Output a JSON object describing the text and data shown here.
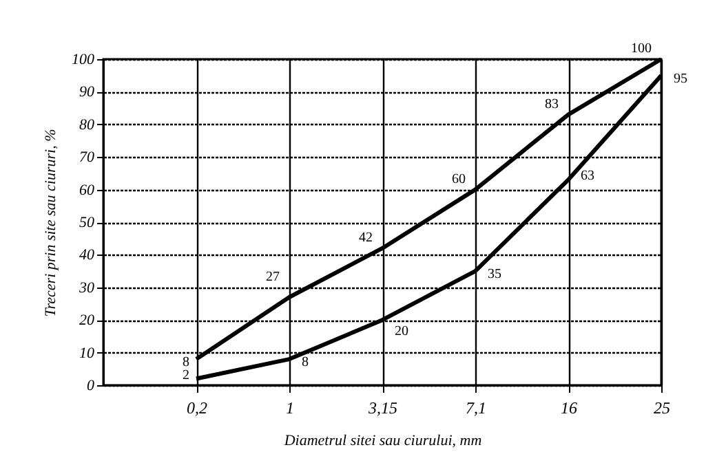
{
  "chart_data": {
    "type": "line",
    "xlabel": "Diametrul sitei sau ciurului, mm",
    "ylabel": "Treceri prin site sau ciururi, %",
    "categories": [
      "0,2",
      "1",
      "3,15",
      "7,1",
      "16",
      "25"
    ],
    "series": [
      {
        "color": "#000000",
        "values": [
          8,
          27,
          42,
          60,
          83,
          100
        ]
      },
      {
        "color": "#000000",
        "values": [
          2,
          8,
          20,
          35,
          63,
          95
        ]
      }
    ],
    "ylim": [
      0,
      100
    ],
    "yticks": [
      0,
      10,
      20,
      30,
      40,
      50,
      60,
      70,
      80,
      90,
      100
    ],
    "grid": true,
    "data_labels": true,
    "legend": false,
    "marker": "none",
    "line_style": "solid"
  }
}
